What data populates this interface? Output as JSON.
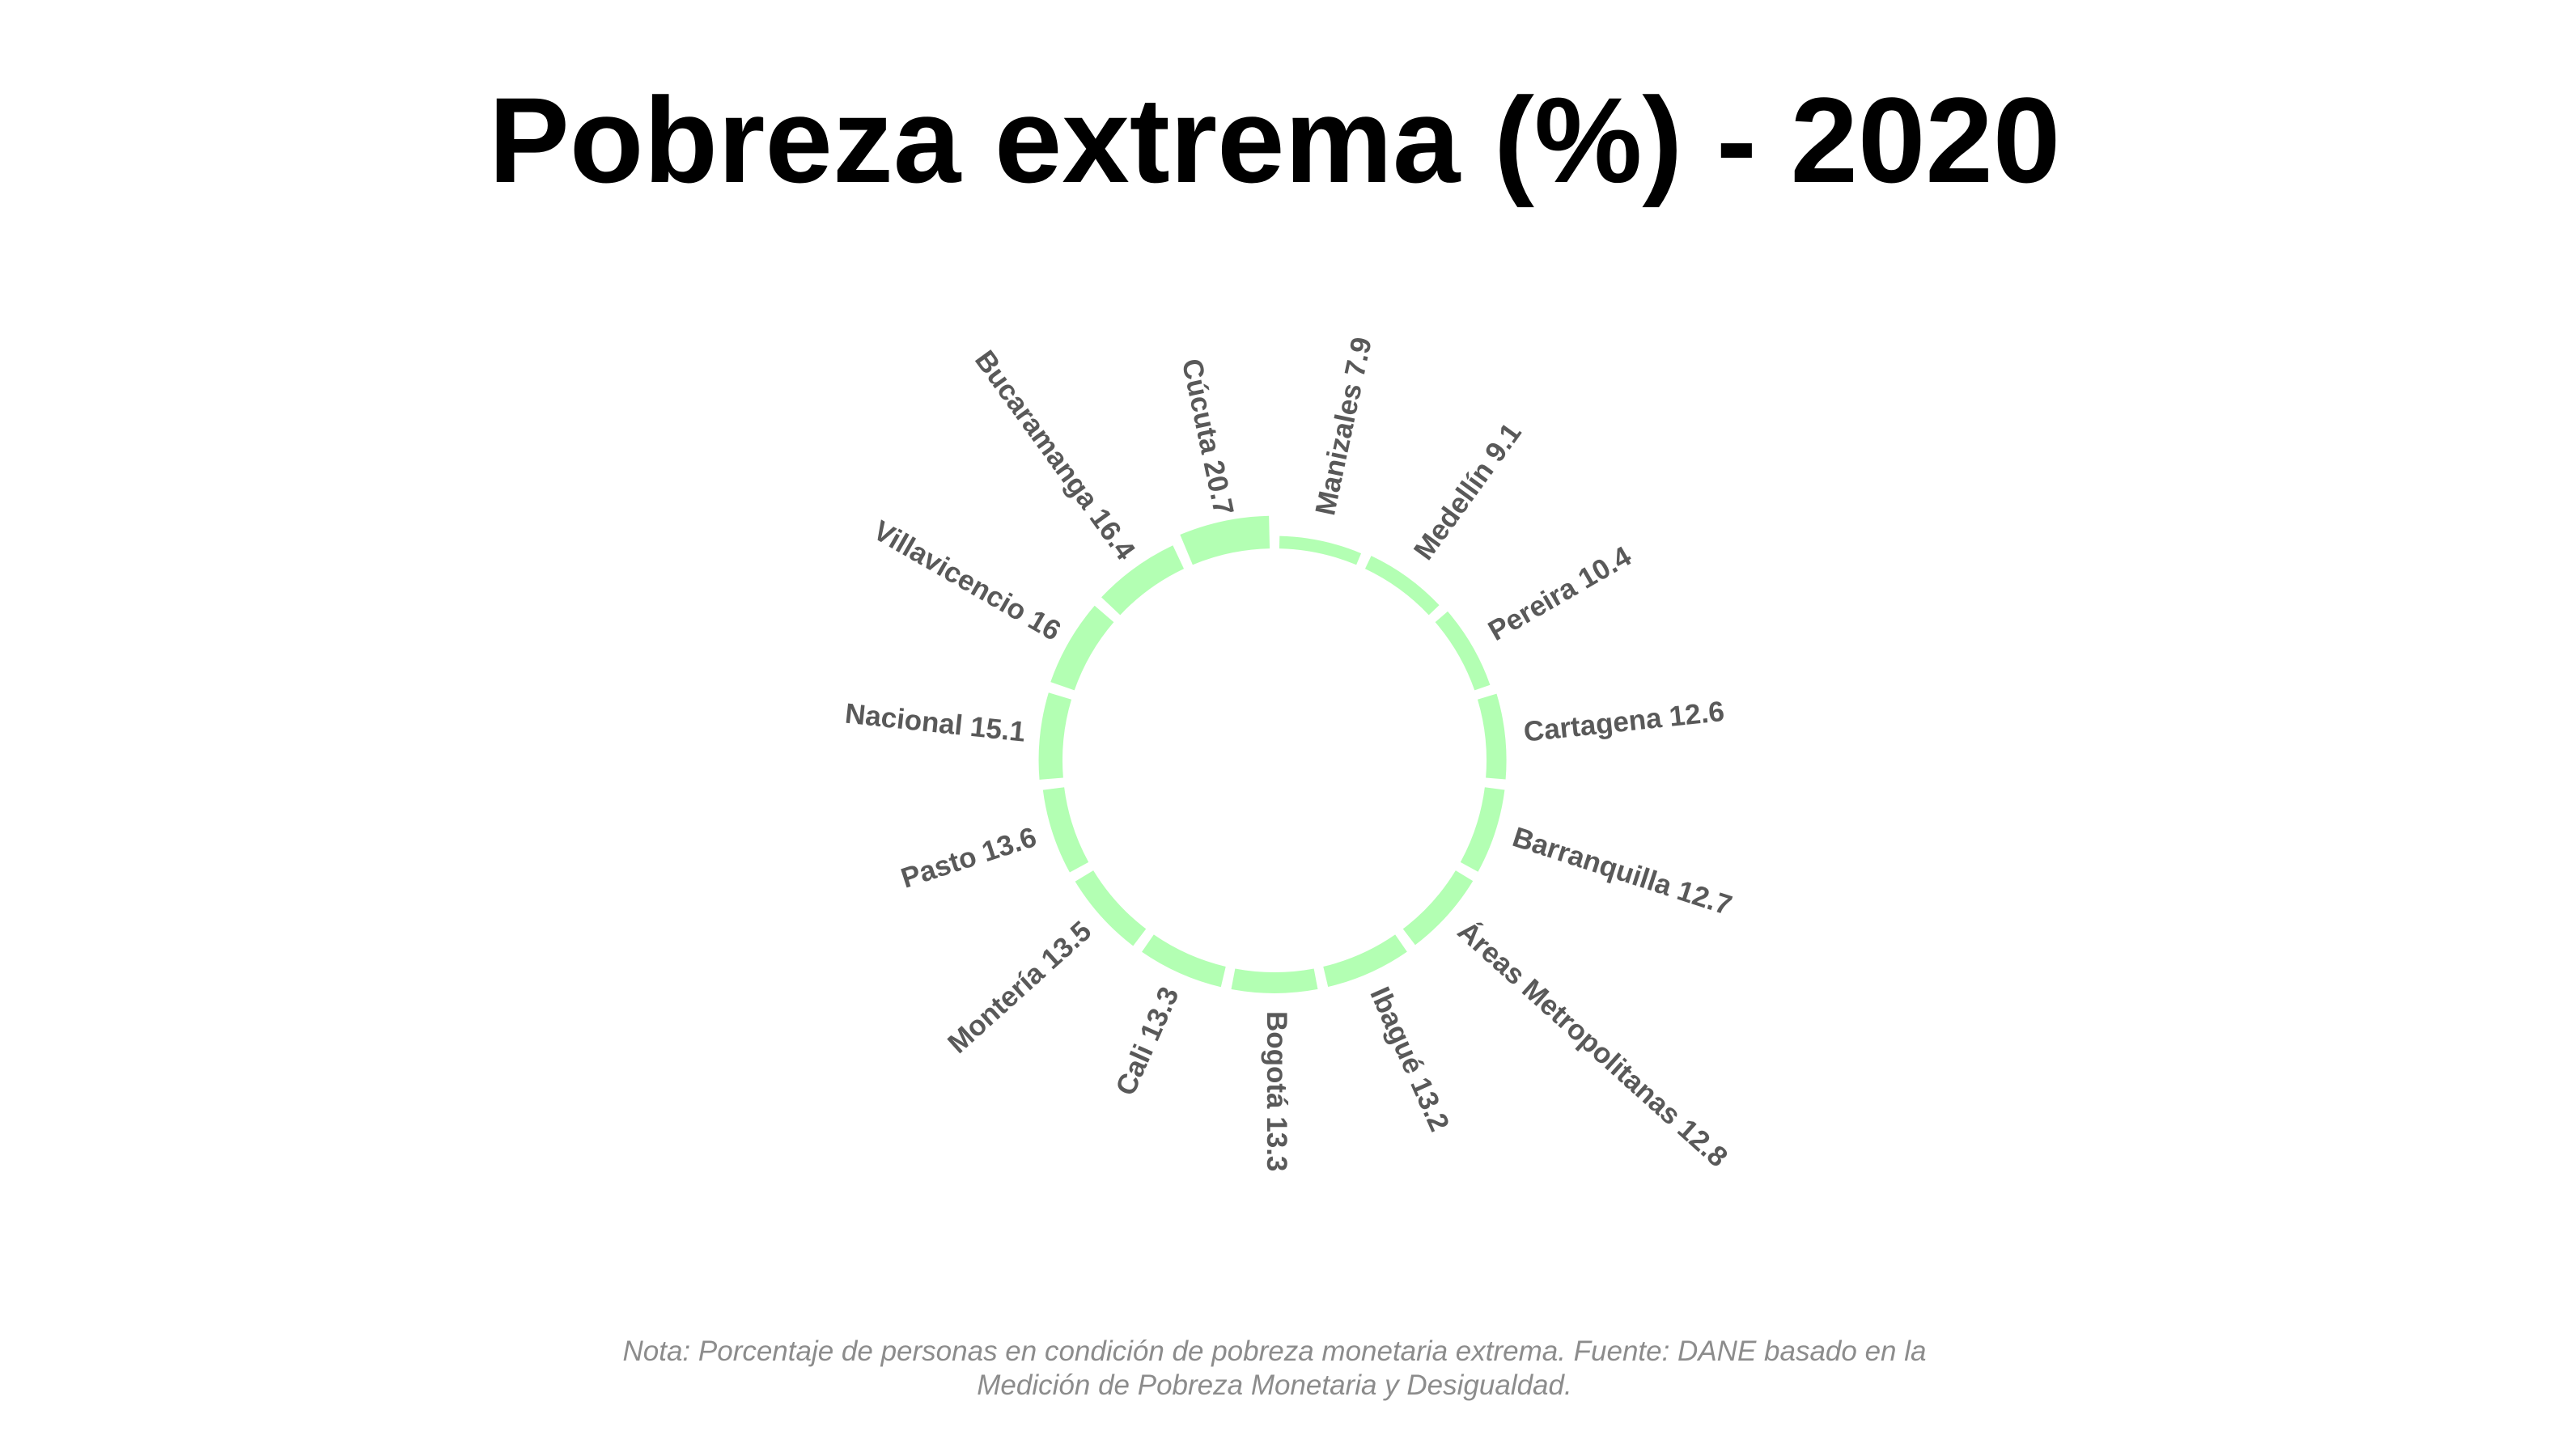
{
  "chart_data": {
    "type": "bar",
    "subtype": "circular",
    "title": "Pobreza extrema (%) - 2020",
    "note_lines": [
      "Nota: Porcentaje de personas en condición de pobreza monetaria extrema. Fuente: DANE basado en la",
      "Medición de Pobreza Monetaria y Desigualdad."
    ],
    "categories": [
      "Manizales",
      "Medellín",
      "Pereira",
      "Cartagena",
      "Barranquilla",
      "Áreas Metropolitanas",
      "Ibagué",
      "Bogotá",
      "Cali",
      "Montería",
      "Pasto",
      "Nacional",
      "Villavicencio",
      "Bucaramanga",
      "Cúcuta"
    ],
    "values": [
      7.9,
      9.1,
      10.4,
      12.6,
      12.7,
      12.8,
      13.2,
      13.3,
      13.3,
      13.5,
      13.6,
      15.1,
      16,
      16.4,
      20.7
    ],
    "labels": [
      "Manizales 7.9",
      "Medellín 9.1",
      "Pereira 10.4",
      "Cartagena 12.6",
      "Barranquilla 12.7",
      "Áreas Metropolitanas 12.8",
      "Ibagué 13.2",
      "Bogotá 13.3",
      "Cali 13.3",
      "Montería 13.5",
      "Pasto 13.6",
      "Nacional 15.1",
      "Villavicencio 16",
      "Bucaramanga 16.4",
      "Cúcuta 20.7"
    ],
    "bar_color": "#b3ffb3",
    "label_color": "#595959",
    "legend": "none",
    "grid": false
  }
}
